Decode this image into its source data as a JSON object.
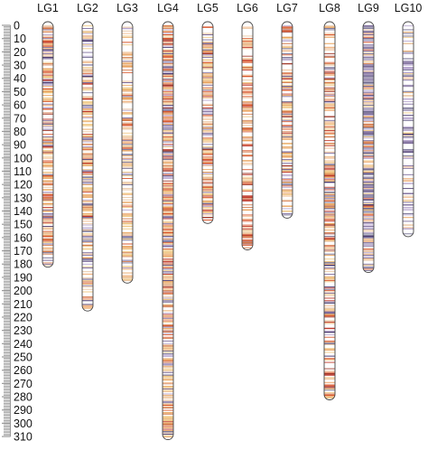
{
  "scale": {
    "max": 310,
    "major_step": 10,
    "minor_step": 1,
    "tick_labels": [
      "0",
      "10",
      "20",
      "30",
      "40",
      "50",
      "60",
      "70",
      "80",
      "90",
      "100",
      "110",
      "120",
      "130",
      "140",
      "150",
      "160",
      "170",
      "180",
      "190",
      "200",
      "210",
      "220",
      "230",
      "240",
      "250",
      "260",
      "270",
      "280",
      "290",
      "300",
      "310"
    ]
  },
  "colors": {
    "outline": "#444444",
    "ruler": "#999999",
    "text": "#111111",
    "marker_palette": [
      "#e8a25c",
      "#f0c884",
      "#d9582e",
      "#c0392b",
      "#7e6c9c",
      "#4d3c73",
      "#b8a7cf",
      "#f2b98a",
      "#a33c2e",
      "#d47a4a",
      "#6f6a8f",
      "#e9c4a0"
    ]
  },
  "linkage_groups": [
    {
      "label": "LG1",
      "length": 181,
      "palette_weights": [
        3,
        2,
        2,
        1,
        2,
        1,
        1,
        1,
        1,
        2,
        1,
        1
      ],
      "density": 0.8
    },
    {
      "label": "LG2",
      "length": 214,
      "palette_weights": [
        3,
        3,
        1,
        1,
        2,
        1,
        2,
        2,
        0,
        1,
        1,
        2
      ],
      "density": 0.75
    },
    {
      "label": "LG3",
      "length": 193,
      "palette_weights": [
        4,
        4,
        1,
        0,
        1,
        0,
        1,
        2,
        0,
        2,
        1,
        3
      ],
      "density": 0.6
    },
    {
      "label": "LG4",
      "length": 311,
      "palette_weights": [
        4,
        3,
        3,
        1,
        2,
        1,
        2,
        1,
        1,
        2,
        1,
        1
      ],
      "density": 0.9
    },
    {
      "label": "LG5",
      "length": 148,
      "palette_weights": [
        3,
        3,
        2,
        1,
        2,
        1,
        2,
        1,
        1,
        1,
        1,
        1
      ],
      "density": 0.75
    },
    {
      "label": "LG6",
      "length": 168,
      "palette_weights": [
        3,
        2,
        4,
        3,
        0,
        0,
        0,
        3,
        2,
        3,
        0,
        2
      ],
      "density": 0.6
    },
    {
      "label": "LG7",
      "length": 144,
      "palette_weights": [
        3,
        3,
        2,
        1,
        2,
        1,
        2,
        2,
        1,
        1,
        1,
        1
      ],
      "density": 0.7
    },
    {
      "label": "LG8",
      "length": 281,
      "palette_weights": [
        3,
        3,
        3,
        2,
        1,
        1,
        1,
        2,
        2,
        2,
        1,
        2
      ],
      "density": 0.7
    },
    {
      "label": "LG9",
      "length": 185,
      "palette_weights": [
        1,
        1,
        1,
        0,
        4,
        3,
        3,
        1,
        0,
        1,
        3,
        1
      ],
      "density": 0.95
    },
    {
      "label": "LG10",
      "length": 158,
      "palette_weights": [
        1,
        1,
        0,
        0,
        3,
        1,
        4,
        1,
        0,
        0,
        3,
        2
      ],
      "density": 0.55
    }
  ]
}
